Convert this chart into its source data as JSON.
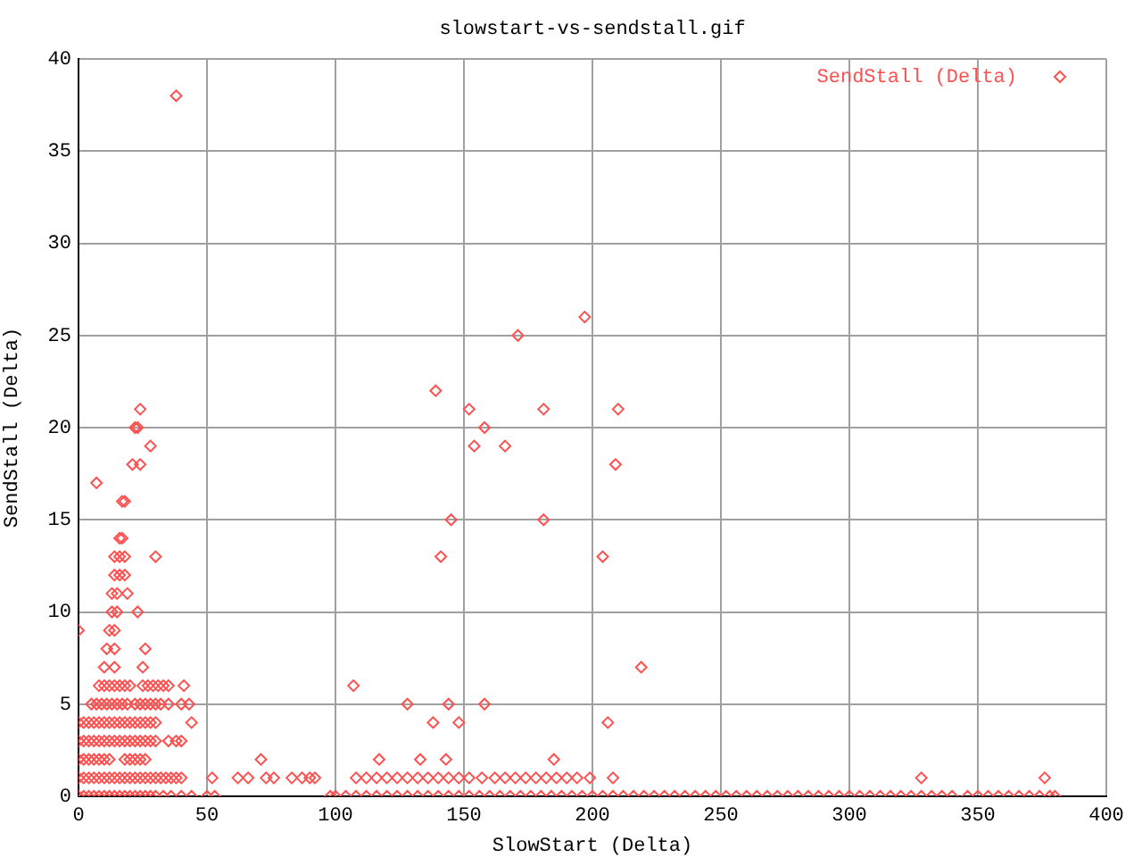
{
  "chart_data": {
    "type": "scatter",
    "title": "slowstart-vs-sendstall.gif",
    "xlabel": "SlowStart (Delta)",
    "ylabel": "SendStall (Delta)",
    "xlim": [
      0,
      400
    ],
    "xticks": [
      0,
      50,
      100,
      150,
      200,
      250,
      300,
      350,
      400
    ],
    "ylim": [
      0,
      40
    ],
    "yticks": [
      0,
      5,
      10,
      15,
      20,
      25,
      30,
      35,
      40
    ],
    "grid": true,
    "legend": "top right",
    "marker": "diamond",
    "series": [
      {
        "name": "SendStall (Delta)",
        "color": "#ff5050",
        "x": [
          0,
          2,
          4,
          6,
          8,
          10,
          12,
          14,
          16,
          18,
          20,
          22,
          24,
          26,
          28,
          30,
          33,
          36,
          40,
          44,
          50,
          53,
          98,
          100,
          104,
          108,
          112,
          116,
          120,
          124,
          128,
          132,
          136,
          140,
          144,
          148,
          152,
          156,
          160,
          164,
          168,
          172,
          176,
          180,
          184,
          188,
          192,
          196,
          200,
          204,
          208,
          212,
          216,
          220,
          224,
          228,
          232,
          236,
          240,
          244,
          248,
          252,
          256,
          260,
          264,
          268,
          272,
          276,
          280,
          284,
          288,
          292,
          296,
          300,
          304,
          308,
          312,
          316,
          320,
          324,
          328,
          332,
          336,
          340,
          346,
          350,
          354,
          358,
          362,
          366,
          370,
          374,
          378,
          380,
          0,
          2,
          4,
          6,
          8,
          10,
          12,
          14,
          16,
          18,
          20,
          22,
          24,
          26,
          28,
          30,
          32,
          34,
          36,
          38,
          40,
          52,
          62,
          66,
          73,
          76,
          83,
          87,
          90,
          92,
          108,
          112,
          116,
          120,
          124,
          128,
          132,
          136,
          140,
          144,
          148,
          152,
          157,
          162,
          166,
          170,
          174,
          178,
          182,
          186,
          190,
          194,
          199,
          208,
          328,
          376,
          0,
          2,
          4,
          6,
          8,
          10,
          12,
          18,
          20,
          22,
          24,
          26,
          71,
          117,
          133,
          143,
          185,
          0,
          2,
          4,
          6,
          8,
          10,
          12,
          14,
          16,
          18,
          20,
          22,
          24,
          26,
          28,
          30,
          35,
          38,
          40,
          0,
          2,
          4,
          6,
          8,
          10,
          12,
          14,
          16,
          18,
          20,
          22,
          24,
          26,
          28,
          30,
          44,
          138,
          148,
          206,
          5,
          7,
          9,
          11,
          13,
          15,
          17,
          19,
          22,
          24,
          26,
          28,
          30,
          32,
          35,
          40,
          43,
          128,
          144,
          158,
          8,
          10,
          12,
          14,
          16,
          18,
          20,
          25,
          27,
          29,
          31,
          33,
          35,
          41,
          107,
          10,
          14,
          25,
          219,
          11,
          14,
          26,
          0,
          12,
          14,
          13,
          15,
          23,
          13,
          15,
          19,
          14,
          16,
          18,
          14,
          16,
          18,
          30,
          141,
          204,
          16,
          17,
          145,
          181,
          17,
          18,
          7,
          21,
          24,
          209,
          28,
          154,
          166,
          22,
          23,
          158,
          24,
          152,
          181,
          210,
          139,
          171,
          197,
          38
        ],
        "values": [
          0,
          0,
          0,
          0,
          0,
          0,
          0,
          0,
          0,
          0,
          0,
          0,
          0,
          0,
          0,
          0,
          0,
          0,
          0,
          0,
          0,
          0,
          0,
          0,
          0,
          0,
          0,
          0,
          0,
          0,
          0,
          0,
          0,
          0,
          0,
          0,
          0,
          0,
          0,
          0,
          0,
          0,
          0,
          0,
          0,
          0,
          0,
          0,
          0,
          0,
          0,
          0,
          0,
          0,
          0,
          0,
          0,
          0,
          0,
          0,
          0,
          0,
          0,
          0,
          0,
          0,
          0,
          0,
          0,
          0,
          0,
          0,
          0,
          0,
          0,
          0,
          0,
          0,
          0,
          0,
          0,
          0,
          0,
          0,
          0,
          0,
          0,
          0,
          0,
          0,
          0,
          0,
          0,
          0,
          1,
          1,
          1,
          1,
          1,
          1,
          1,
          1,
          1,
          1,
          1,
          1,
          1,
          1,
          1,
          1,
          1,
          1,
          1,
          1,
          1,
          1,
          1,
          1,
          1,
          1,
          1,
          1,
          1,
          1,
          1,
          1,
          1,
          1,
          1,
          1,
          1,
          1,
          1,
          1,
          1,
          1,
          1,
          1,
          1,
          1,
          1,
          1,
          1,
          1,
          1,
          1,
          1,
          1,
          1,
          1,
          2,
          2,
          2,
          2,
          2,
          2,
          2,
          2,
          2,
          2,
          2,
          2,
          2,
          2,
          2,
          2,
          2,
          3,
          3,
          3,
          3,
          3,
          3,
          3,
          3,
          3,
          3,
          3,
          3,
          3,
          3,
          3,
          3,
          3,
          3,
          3,
          4,
          4,
          4,
          4,
          4,
          4,
          4,
          4,
          4,
          4,
          4,
          4,
          4,
          4,
          4,
          4,
          4,
          4,
          4,
          4,
          5,
          5,
          5,
          5,
          5,
          5,
          5,
          5,
          5,
          5,
          5,
          5,
          5,
          5,
          5,
          5,
          5,
          5,
          5,
          5,
          6,
          6,
          6,
          6,
          6,
          6,
          6,
          6,
          6,
          6,
          6,
          6,
          6,
          6,
          6,
          7,
          7,
          7,
          7,
          8,
          8,
          8,
          9,
          9,
          9,
          10,
          10,
          10,
          11,
          11,
          11,
          12,
          12,
          12,
          13,
          13,
          13,
          13,
          13,
          13,
          14,
          14,
          15,
          15,
          16,
          16,
          17,
          18,
          18,
          18,
          19,
          19,
          19,
          20,
          20,
          20,
          21,
          21,
          21,
          21,
          22,
          25,
          26,
          38
        ]
      }
    ]
  }
}
